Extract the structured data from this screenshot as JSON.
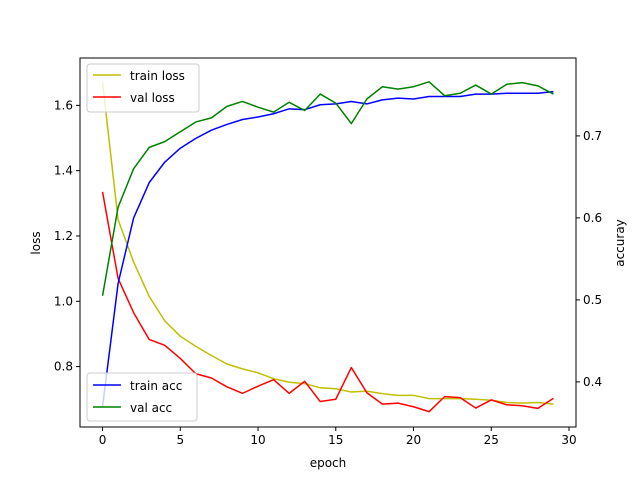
{
  "chart_data": {
    "type": "line",
    "xlabel": "epoch",
    "ylabel_left": "loss",
    "ylabel_right": "accuray",
    "xlim": [
      -1.45,
      30.45
    ],
    "ylim_left": [
      0.615,
      1.745
    ],
    "ylim_right": [
      0.345,
      0.795
    ],
    "x_ticks": [
      0,
      5,
      10,
      15,
      20,
      25,
      30
    ],
    "y_ticks_left": [
      0.8,
      1.0,
      1.2,
      1.4,
      1.6
    ],
    "y_ticks_right": [
      0.4,
      0.5,
      0.6,
      0.7
    ],
    "x": [
      0,
      1,
      2,
      3,
      4,
      5,
      6,
      7,
      8,
      9,
      10,
      11,
      12,
      13,
      14,
      15,
      16,
      17,
      18,
      19,
      20,
      21,
      22,
      23,
      24,
      25,
      26,
      27,
      28,
      29
    ],
    "legend_top_left": [
      "train loss",
      "val loss"
    ],
    "legend_bottom_left": [
      "train acc",
      "val acc"
    ],
    "series": [
      {
        "name": "train loss",
        "axis": "left",
        "color": "#bfbf00",
        "values": [
          1.67,
          1.25,
          1.12,
          1.015,
          0.94,
          0.893,
          0.862,
          0.834,
          0.808,
          0.793,
          0.781,
          0.763,
          0.752,
          0.748,
          0.735,
          0.732,
          0.722,
          0.725,
          0.717,
          0.712,
          0.712,
          0.702,
          0.702,
          0.702,
          0.7,
          0.697,
          0.69,
          0.688,
          0.69,
          0.685
        ]
      },
      {
        "name": "val loss",
        "axis": "left",
        "color": "#ff0000",
        "values": [
          1.335,
          1.07,
          0.965,
          0.883,
          0.865,
          0.825,
          0.778,
          0.765,
          0.738,
          0.718,
          0.74,
          0.76,
          0.718,
          0.755,
          0.693,
          0.7,
          0.797,
          0.72,
          0.685,
          0.688,
          0.677,
          0.662,
          0.708,
          0.705,
          0.673,
          0.698,
          0.683,
          0.68,
          0.672,
          0.703
        ]
      },
      {
        "name": "train acc",
        "axis": "right",
        "color": "#0000ff",
        "values": [
          0.37,
          0.52,
          0.6,
          0.643,
          0.668,
          0.685,
          0.697,
          0.707,
          0.714,
          0.72,
          0.723,
          0.727,
          0.733,
          0.732,
          0.738,
          0.739,
          0.742,
          0.739,
          0.744,
          0.746,
          0.745,
          0.748,
          0.748,
          0.748,
          0.751,
          0.751,
          0.752,
          0.752,
          0.752,
          0.754
        ]
      },
      {
        "name": "val acc",
        "axis": "right",
        "color": "#008000",
        "values": [
          0.505,
          0.613,
          0.66,
          0.686,
          0.693,
          0.705,
          0.717,
          0.722,
          0.736,
          0.742,
          0.735,
          0.729,
          0.741,
          0.731,
          0.751,
          0.74,
          0.715,
          0.745,
          0.76,
          0.757,
          0.76,
          0.766,
          0.749,
          0.752,
          0.762,
          0.751,
          0.763,
          0.765,
          0.761,
          0.751
        ]
      }
    ]
  }
}
